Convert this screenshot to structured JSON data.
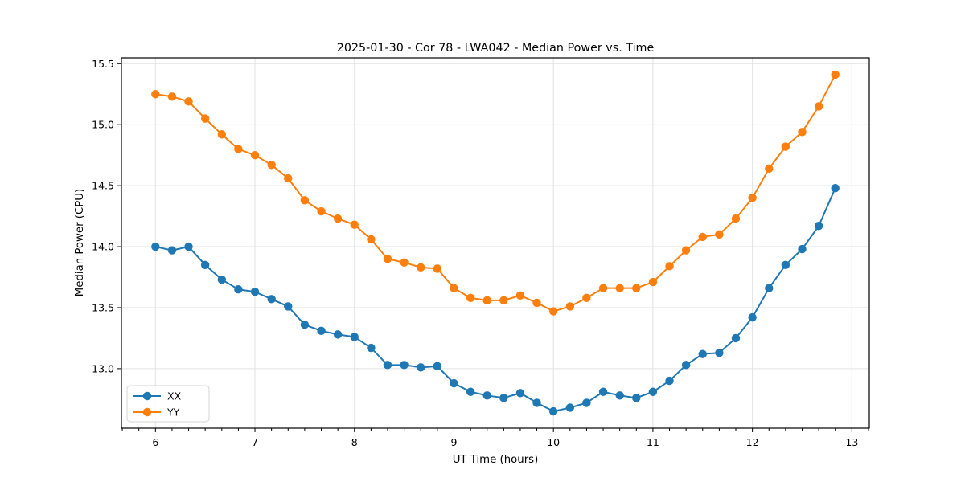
{
  "chart_data": {
    "type": "line",
    "title": "2025-01-30 - Cor 78 - LWA042 - Median Power vs. Time",
    "xlabel": "UT Time (hours)",
    "ylabel": "Median Power (CPU)",
    "xlim": [
      5.658,
      13.175
    ],
    "ylim": [
      12.512,
      15.548
    ],
    "xticks": [
      6,
      7,
      8,
      9,
      10,
      11,
      12,
      13
    ],
    "xticklabels": [
      "6",
      "7",
      "8",
      "9",
      "10",
      "11",
      "12",
      "13"
    ],
    "yticks": [
      13.0,
      13.5,
      14.0,
      14.5,
      15.0,
      15.5
    ],
    "yticklabels": [
      "13.0",
      "13.5",
      "14.0",
      "14.5",
      "15.0",
      "15.5"
    ],
    "x_minor_step": 0.1666667,
    "grid": true,
    "legend_position": "lower left",
    "background": "#ffffff",
    "grid_color": "#e2e2e2",
    "x": [
      6.0,
      6.167,
      6.333,
      6.5,
      6.667,
      6.833,
      7.0,
      7.167,
      7.333,
      7.5,
      7.667,
      7.833,
      8.0,
      8.167,
      8.333,
      8.5,
      8.667,
      8.833,
      9.0,
      9.167,
      9.333,
      9.5,
      9.667,
      9.833,
      10.0,
      10.167,
      10.333,
      10.5,
      10.667,
      10.833,
      11.0,
      11.167,
      11.333,
      11.5,
      11.667,
      11.833,
      12.0,
      12.167,
      12.333,
      12.5,
      12.667,
      12.833
    ],
    "series": [
      {
        "name": "XX",
        "color": "#1f77b4",
        "marker": "circle",
        "values": [
          14.0,
          13.97,
          14.0,
          13.85,
          13.73,
          13.65,
          13.63,
          13.57,
          13.51,
          13.36,
          13.31,
          13.28,
          13.26,
          13.17,
          13.03,
          13.03,
          13.01,
          13.02,
          12.88,
          12.81,
          12.78,
          12.76,
          12.8,
          12.72,
          12.65,
          12.68,
          12.72,
          12.81,
          12.78,
          12.76,
          12.81,
          12.9,
          13.03,
          13.12,
          13.13,
          13.25,
          13.42,
          13.66,
          13.85,
          13.98,
          14.17,
          14.48
        ]
      },
      {
        "name": "YY",
        "color": "#ff7f0e",
        "marker": "circle",
        "values": [
          15.25,
          15.23,
          15.19,
          15.05,
          14.92,
          14.8,
          14.75,
          14.67,
          14.56,
          14.38,
          14.29,
          14.23,
          14.18,
          14.06,
          13.9,
          13.87,
          13.83,
          13.82,
          13.66,
          13.58,
          13.56,
          13.56,
          13.6,
          13.54,
          13.47,
          13.51,
          13.58,
          13.66,
          13.66,
          13.66,
          13.71,
          13.84,
          13.97,
          14.08,
          14.1,
          14.23,
          14.4,
          14.64,
          14.82,
          14.94,
          15.15,
          15.41
        ]
      }
    ]
  }
}
